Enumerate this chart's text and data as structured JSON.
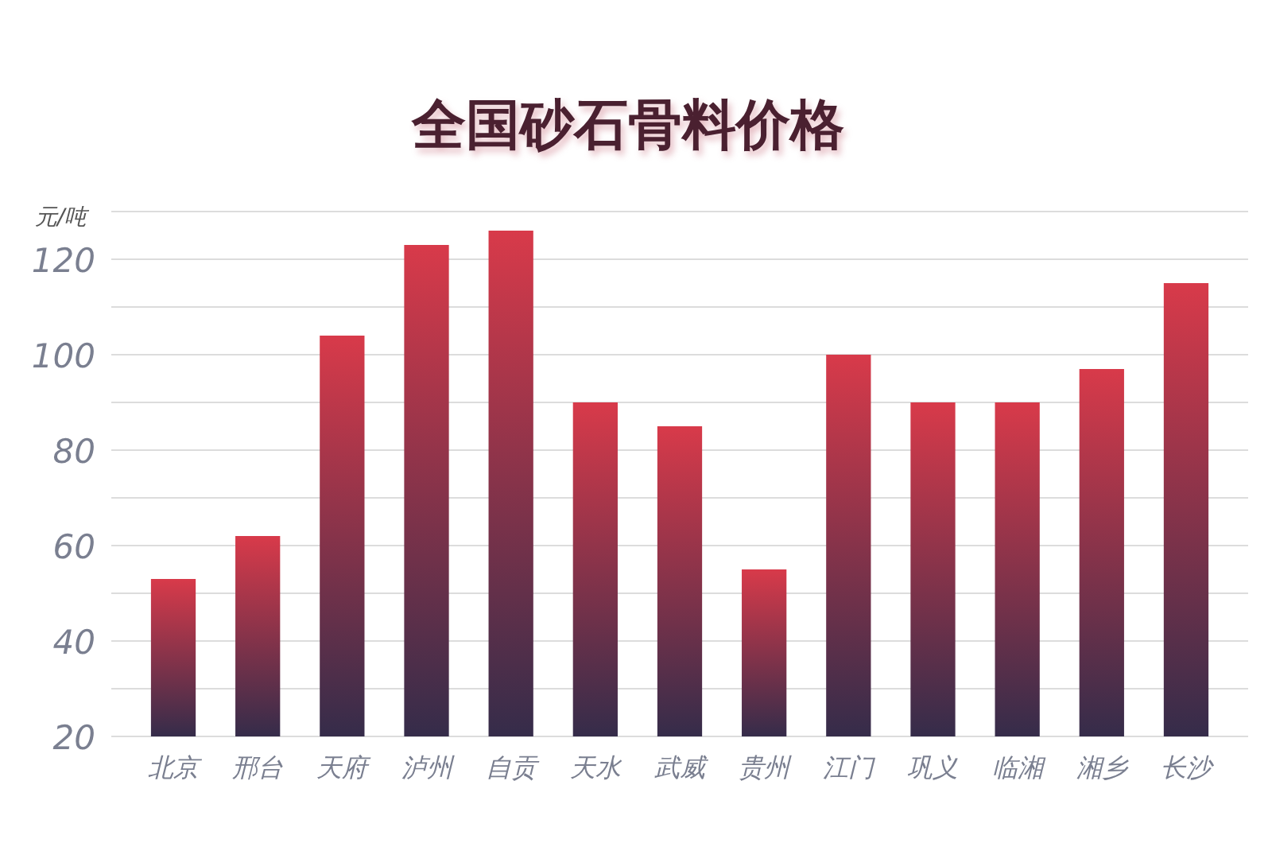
{
  "chart_data": {
    "type": "bar",
    "title": "全国砂石骨料价格",
    "ylabel": "元/吨",
    "categories": [
      "北京",
      "邢台",
      "天府",
      "泸州",
      "自贡",
      "天水",
      "武威",
      "贵州",
      "江门",
      "巩义",
      "临湘",
      "湘乡",
      "长沙"
    ],
    "series": [
      {
        "color": "#d83a4a",
        "values": [
          53,
          62,
          104,
          123,
          126,
          90,
          85,
          55,
          100,
          90,
          90,
          97,
          115
        ]
      }
    ],
    "ylim": [
      20,
      130
    ],
    "yticks": [
      20,
      {
        "value": 30,
        "label": null
      },
      40,
      {
        "value": 50,
        "label": null
      },
      60,
      {
        "value": 70,
        "label": null
      },
      80,
      {
        "value": 90,
        "label": null
      },
      100,
      {
        "value": 110,
        "label": null
      },
      120,
      {
        "value": 130,
        "label": null
      }
    ],
    "grid": "y"
  }
}
